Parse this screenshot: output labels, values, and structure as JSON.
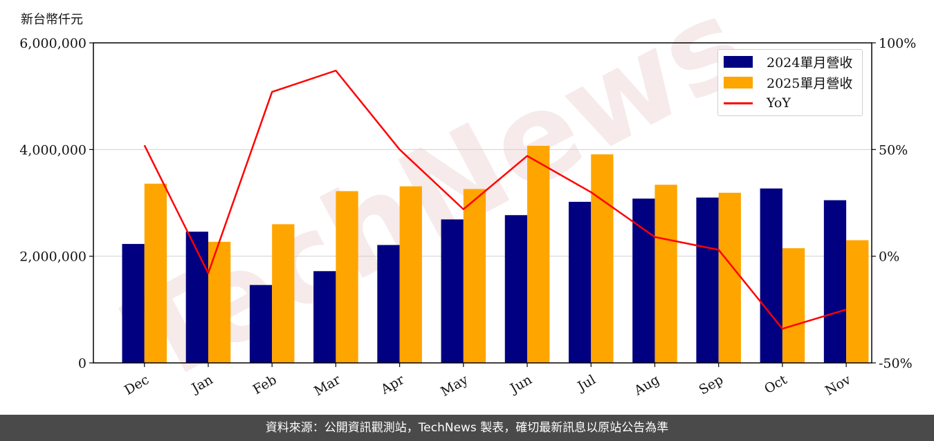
{
  "unit_label": "新台幣仟元",
  "footer_text": "資料來源：公開資訊觀測站，TechNews 製表，確切最新訊息以原站公告為準",
  "watermark_text": "TechNews",
  "colors": {
    "series_2024": "#000080",
    "series_2025": "#FFA500",
    "yoy": "#FF0000",
    "grid": "#d0d0d0"
  },
  "chart_data": {
    "type": "bar",
    "categories": [
      "Dec",
      "Jan",
      "Feb",
      "Mar",
      "Apr",
      "May",
      "Jun",
      "Jul",
      "Aug",
      "Sep",
      "Oct",
      "Nov"
    ],
    "series": [
      {
        "name": "2024單月營收",
        "values": [
          2230000,
          2460000,
          1460000,
          1720000,
          2210000,
          2690000,
          2770000,
          3020000,
          3080000,
          3100000,
          3270000,
          3050000
        ]
      },
      {
        "name": "2025單月營收",
        "values": [
          3360000,
          2270000,
          2600000,
          3220000,
          3310000,
          3260000,
          4070000,
          3910000,
          3340000,
          3190000,
          2150000,
          2300000
        ]
      }
    ],
    "line_series": {
      "name": "YoY",
      "axis": "right",
      "values": [
        52,
        -8,
        77,
        87,
        50,
        22,
        47,
        30,
        9,
        3,
        -34,
        -25
      ]
    },
    "ylim": [
      0,
      6000000
    ],
    "yticks": [
      "0",
      "2,000,000",
      "4,000,000",
      "6,000,000"
    ],
    "y2lim": [
      -50,
      100
    ],
    "y2ticks": [
      "-50%",
      "0%",
      "50%",
      "100%"
    ],
    "legend_position": "top-right",
    "grid": "horizontal"
  }
}
